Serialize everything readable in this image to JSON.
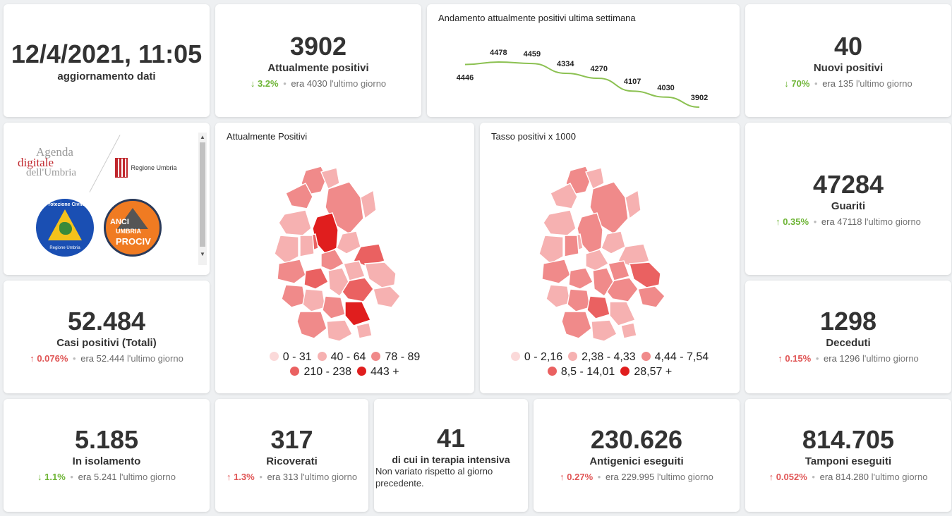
{
  "update": {
    "datetime": "12/4/2021, 11:05",
    "label": "aggiornamento dati"
  },
  "positivi_attuali": {
    "value": "3902",
    "label": "Attualmente positivi",
    "pct": "3.2%",
    "prev": "era 4030",
    "suffix": "l'ultimo giorno",
    "direction": "down"
  },
  "trend": {
    "title": "Andamento attualmente positivi ultima settimana",
    "chart_data": {
      "type": "line",
      "title": "Andamento attualmente positivi ultima settimana",
      "series": [
        {
          "values": [
            4446,
            4478,
            4459,
            4334,
            4270,
            4107,
            4030,
            3902
          ]
        }
      ],
      "data_labels": [
        "4446",
        "4478",
        "4459",
        "4334",
        "4270",
        "4107",
        "4030",
        "3902"
      ],
      "line_color": "#8cc152",
      "grid": false,
      "axes": false
    }
  },
  "nuovi_positivi": {
    "value": "40",
    "label": "Nuovi positivi",
    "pct": "70%",
    "prev": "era 135",
    "suffix": "l'ultimo giorno",
    "direction": "down"
  },
  "logos": {
    "agenda_1": "Agenda",
    "agenda_2": "digitale",
    "agenda_3": "dell'Umbria",
    "regione": "Regione Umbria",
    "protezione": "Protezione Civile",
    "protezione_sub": "Regione Umbria",
    "anci_1": "ANCI",
    "anci_2": "UMBRIA",
    "anci_3": "PROCIV"
  },
  "map_positivi": {
    "title": "Attualmente Positivi",
    "legend": [
      {
        "label": "0 - 31",
        "color": "#fbd9d9"
      },
      {
        "label": "40 - 64",
        "color": "#f6b1b1"
      },
      {
        "label": "78 - 89",
        "color": "#f08a8a"
      },
      {
        "label": "210 - 238",
        "color": "#ea6161"
      },
      {
        "label": "443 +",
        "color": "#e01e1e"
      }
    ]
  },
  "map_tasso": {
    "title": "Tasso positivi x 1000",
    "legend": [
      {
        "label": "0 - 2,16",
        "color": "#fbd9d9"
      },
      {
        "label": "2,38 - 4,33",
        "color": "#f6b1b1"
      },
      {
        "label": "4,44 - 7,54",
        "color": "#f08a8a"
      },
      {
        "label": "8,5 - 14,01",
        "color": "#ea6161"
      },
      {
        "label": "28,57 +",
        "color": "#e01e1e"
      }
    ]
  },
  "guariti": {
    "value": "47284",
    "label": "Guariti",
    "pct": "0.35%",
    "prev": "era 47118",
    "suffix": "l'ultimo giorno",
    "direction": "up"
  },
  "casi_totali": {
    "value": "52.484",
    "label": "Casi positivi (Totali)",
    "pct": "0.076%",
    "prev": "era 52.444",
    "suffix": "l'ultimo giorno",
    "direction": "up"
  },
  "deceduti": {
    "value": "1298",
    "label": "Deceduti",
    "pct": "0.15%",
    "prev": "era 1296",
    "suffix": "l'ultimo giorno",
    "direction": "up"
  },
  "isolamento": {
    "value": "5.185",
    "label": "In isolamento",
    "pct": "1.1%",
    "prev": "era 5.241",
    "suffix": "l'ultimo giorno",
    "direction": "down"
  },
  "ricoverati": {
    "value": "317",
    "label": "Ricoverati",
    "pct": "1.3%",
    "prev": "era 313",
    "suffix": "l'ultimo giorno",
    "direction": "up"
  },
  "terapia": {
    "value": "41",
    "label": "di cui in terapia intensiva",
    "note": "Non variato rispetto al giorno precedente."
  },
  "antigenici": {
    "value": "230.626",
    "label": "Antigenici eseguiti",
    "pct": "0.27%",
    "prev": "era 229.995",
    "suffix": "l'ultimo giorno",
    "direction": "up"
  },
  "tamponi": {
    "value": "814.705",
    "label": "Tamponi eseguiti",
    "pct": "0.052%",
    "prev": "era 814.280",
    "suffix": "l'ultimo giorno",
    "direction": "up"
  },
  "colors": {
    "down": "#6fb537",
    "up": "#e05656"
  },
  "icons": {
    "down": "arrow-down-icon",
    "up": "arrow-up-icon"
  }
}
